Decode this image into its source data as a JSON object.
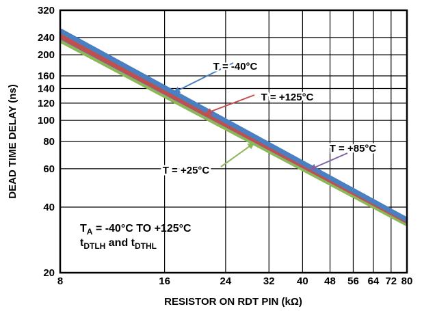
{
  "chart_data": {
    "type": "line",
    "xlabel": "RESISTOR ON RDT PIN (kΩ)",
    "ylabel": "DEAD TIME DELAY (ns)",
    "x_scale": "log",
    "y_scale": "log",
    "xlim": [
      8,
      80
    ],
    "ylim": [
      20,
      320
    ],
    "grid": true,
    "x_ticks": [
      "8",
      "16",
      "24",
      "32",
      "40",
      "48",
      "56",
      "64",
      "72",
      "80"
    ],
    "y_ticks": [
      "20",
      "40",
      "60",
      "80",
      "100",
      "120",
      "140",
      "160",
      "200",
      "240",
      "320"
    ],
    "series": [
      {
        "name": "T = -40°C",
        "color": "#4a7fc1",
        "x": [
          8,
          80
        ],
        "y": [
          258,
          35
        ]
      },
      {
        "name": "T = +125°C",
        "color": "#c0504d",
        "x": [
          8,
          80
        ],
        "y": [
          244,
          34.5
        ]
      },
      {
        "name": "T = +85°C",
        "color": "#8064a2",
        "x": [
          8,
          80
        ],
        "y": [
          242,
          34.5
        ]
      },
      {
        "name": "T = +25°C",
        "color": "#8db85a",
        "x": [
          8,
          80
        ],
        "y": [
          233,
          33.5
        ]
      }
    ],
    "annotations": [
      {
        "series": 0,
        "text": "T = -40°C",
        "arrow_at_x": 17
      },
      {
        "series": 1,
        "text": "T = +125°C",
        "arrow_at_x": 21
      },
      {
        "series": 2,
        "text": "T = +85°C",
        "arrow_at_x": 42
      },
      {
        "series": 3,
        "text": "T = +25°C",
        "arrow_at_x": 29
      }
    ],
    "conditions": {
      "line1_main": "T",
      "line1_sub": "A",
      "line1_rest": " = -40°C TO +125°C",
      "line2_a": "t",
      "line2_a_sub": "DTLH",
      "line2_mid": " and t",
      "line2_b_sub": "DTHL"
    }
  }
}
